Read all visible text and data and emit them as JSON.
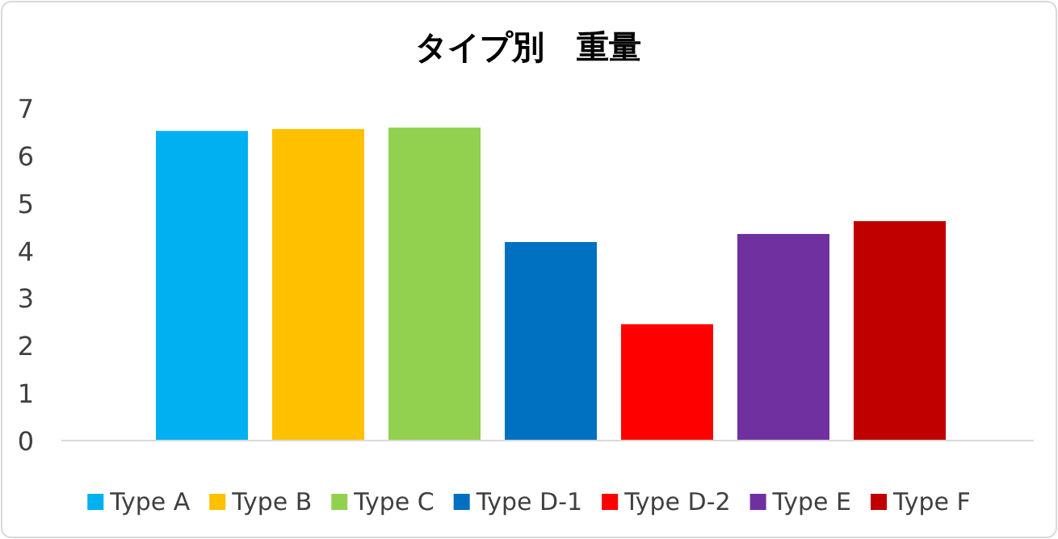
{
  "chart_data": {
    "type": "bar",
    "title": "タイプ別　重量",
    "categories": [
      null
    ],
    "series": [
      {
        "name": "Type A",
        "color": "#00b0f0",
        "values": [
          6.52
        ]
      },
      {
        "name": "Type B",
        "color": "#ffc000",
        "values": [
          6.56
        ]
      },
      {
        "name": "Type C",
        "color": "#92d050",
        "values": [
          6.59
        ]
      },
      {
        "name": "Type D-1",
        "color": "#0070c0",
        "values": [
          4.18
        ]
      },
      {
        "name": "Type D-2",
        "color": "#ff0000",
        "values": [
          2.45
        ]
      },
      {
        "name": "Type E",
        "color": "#7030a0",
        "values": [
          4.35
        ]
      },
      {
        "name": "Type F",
        "color": "#c00000",
        "values": [
          4.62
        ]
      }
    ],
    "ylim": [
      0,
      7
    ],
    "yticks": [
      0,
      1,
      2,
      3,
      4,
      5,
      6,
      7
    ],
    "grid": false,
    "legend": "bottom"
  }
}
